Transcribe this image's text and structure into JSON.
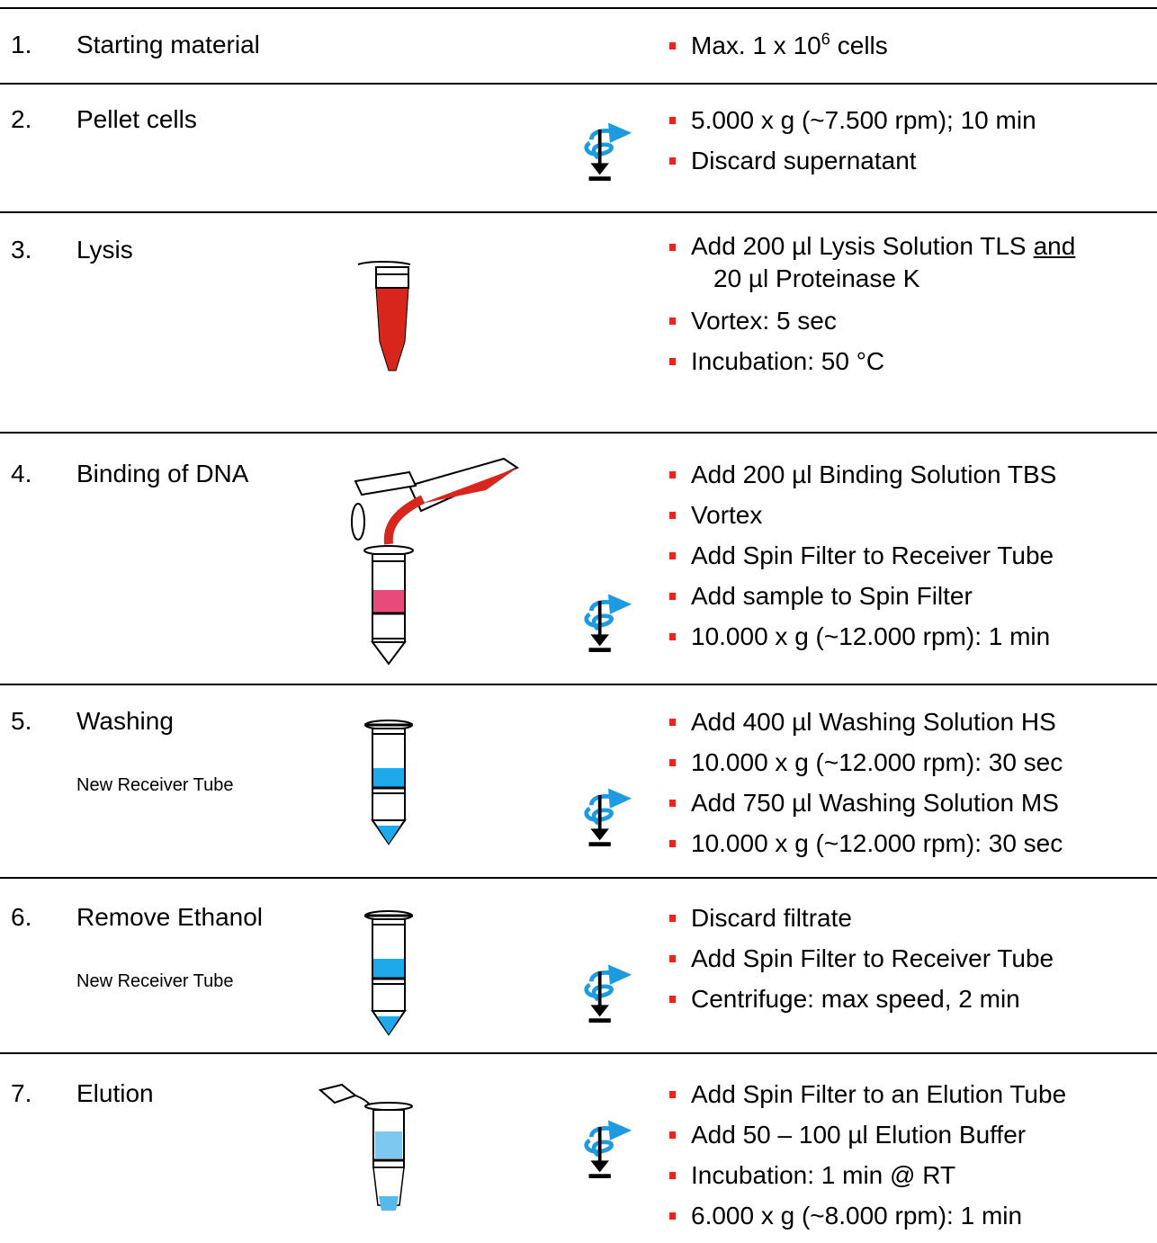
{
  "steps": [
    {
      "number": "1.",
      "title": "Starting material",
      "bullets": [
        {
          "text": "Max. 1 x 10",
          "sup": "6",
          "tail": "cells"
        }
      ]
    },
    {
      "number": "2.",
      "title": "Pellet cells",
      "bullets": [
        "5.000 x g (~7.500 rpm); 10 min",
        "Discard supernatant"
      ]
    },
    {
      "number": "3.",
      "title": "Lysis",
      "bullets": [
        {
          "text": "Add 200 µl Lysis Solution TLS",
          "underline": "and",
          "tail": "20 µl Proteinase K"
        },
        "Vortex: 5 sec",
        "Incubation: 50 °C"
      ]
    },
    {
      "number": "4.",
      "title": "Binding of DNA",
      "bullets": [
        "Add 200 µl Binding Solution TBS",
        "Vortex",
        "Add Spin Filter to Receiver Tube",
        "Add sample to Spin Filter",
        "10.000 x g (~12.000 rpm): 1 min"
      ]
    },
    {
      "number": "5.",
      "title": "Washing",
      "note": "New Receiver Tube",
      "bullets": [
        "Add 400 µl Washing Solution HS",
        "10.000 x g (~12.000 rpm): 30 sec",
        "Add 750 µl Washing Solution MS",
        "10.000 x g (~12.000 rpm): 30 sec"
      ]
    },
    {
      "number": "6.",
      "title": "Remove Ethanol",
      "note": "New Receiver Tube",
      "bullets": [
        "Discard filtrate",
        "Add Spin Filter to Receiver Tube",
        "Centrifuge: max speed, 2 min"
      ]
    },
    {
      "number": "7.",
      "title": "Elution",
      "bullets": [
        "Add Spin Filter to an Elution Tube",
        "Add 50 – 100 µl Elution Buffer",
        "Incubation: 1 min @ RT",
        "6.000 x g (~8.000 rpm): 1 min"
      ]
    }
  ]
}
